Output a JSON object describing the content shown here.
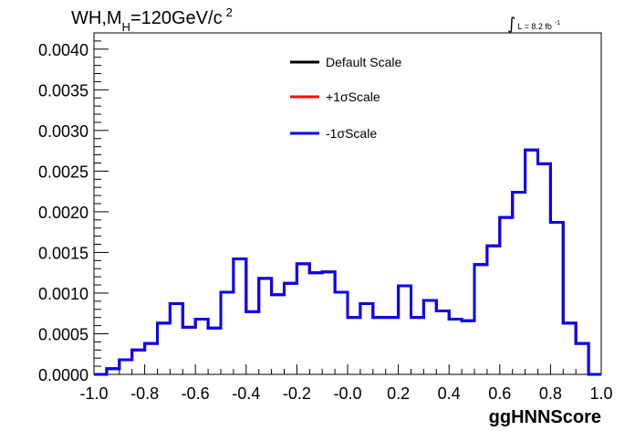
{
  "chart_data": {
    "type": "histogram",
    "title": {
      "prefix": "WH,M",
      "subscript": "H",
      "suffix": "=120GeV/c",
      "superscript": "2"
    },
    "lumi": {
      "integral_symbol": "∫",
      "text": "L = 8.2 fb",
      "superscript": "-1"
    },
    "xlabel": "ggHNNScore",
    "ylabel": "",
    "xlim": [
      -1.0,
      1.0
    ],
    "ylim": [
      0,
      0.0042
    ],
    "x_ticks": [
      "-1.0",
      "-0.8",
      "-0.6",
      "-0.4",
      "-0.2",
      "-0.0",
      "0.2",
      "0.4",
      "0.6",
      "0.8",
      "1.0"
    ],
    "y_ticks": [
      "0.0000",
      "0.0005",
      "0.0010",
      "0.0015",
      "0.0020",
      "0.0025",
      "0.0030",
      "0.0035",
      "0.0040"
    ],
    "bin_edges_start": -1.0,
    "bin_width": 0.05,
    "legend_position": "top-center",
    "series": [
      {
        "name": "Default Scale",
        "color": "#000000",
        "values": [
          0.0,
          7e-05,
          0.00018,
          0.0003,
          0.00038,
          0.00063,
          0.00087,
          0.00058,
          0.00068,
          0.00057,
          0.00101,
          0.00142,
          0.00077,
          0.00118,
          0.00098,
          0.00112,
          0.00136,
          0.00125,
          0.00126,
          0.00101,
          0.0007,
          0.00087,
          0.0007,
          0.0007,
          0.00109,
          0.0007,
          0.00091,
          0.00078,
          0.00068,
          0.00066,
          0.00135,
          0.00158,
          0.00193,
          0.00224,
          0.00276,
          0.00259,
          0.00187,
          0.00063,
          0.00038,
          0.0
        ]
      },
      {
        "name": "+1σScale",
        "color": "#ff0000",
        "values": [
          0.0,
          7e-05,
          0.00018,
          0.0003,
          0.00038,
          0.00063,
          0.00087,
          0.00058,
          0.00068,
          0.00057,
          0.00101,
          0.00142,
          0.00077,
          0.00118,
          0.00098,
          0.00112,
          0.00136,
          0.00125,
          0.00126,
          0.00101,
          0.0007,
          0.00087,
          0.0007,
          0.0007,
          0.00109,
          0.0007,
          0.00091,
          0.00078,
          0.00068,
          0.00066,
          0.00135,
          0.00158,
          0.00193,
          0.00224,
          0.00276,
          0.00259,
          0.00187,
          0.00063,
          0.00038,
          0.0
        ]
      },
      {
        "name": "-1σScale",
        "color": "#0000ff",
        "values": [
          0.0,
          7e-05,
          0.00018,
          0.0003,
          0.00038,
          0.00063,
          0.00087,
          0.00058,
          0.00068,
          0.00057,
          0.00101,
          0.00142,
          0.00077,
          0.00118,
          0.00098,
          0.00112,
          0.00136,
          0.00125,
          0.00126,
          0.00101,
          0.0007,
          0.00087,
          0.0007,
          0.0007,
          0.00109,
          0.0007,
          0.00091,
          0.00078,
          0.00068,
          0.00066,
          0.00135,
          0.00158,
          0.00193,
          0.00224,
          0.00276,
          0.00259,
          0.00187,
          0.00063,
          0.00038,
          0.0
        ]
      }
    ]
  }
}
